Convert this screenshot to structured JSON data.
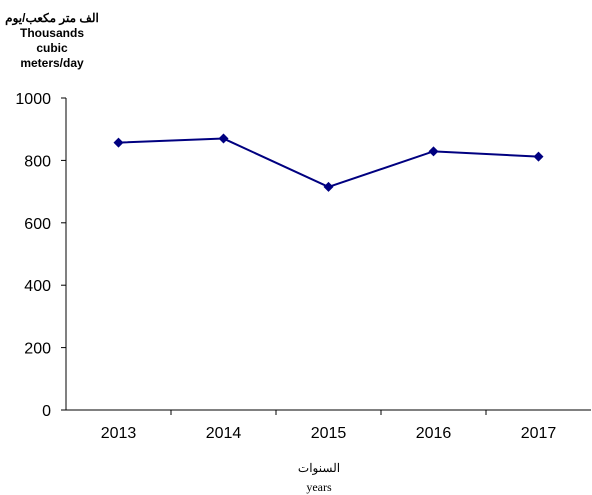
{
  "chart_data": {
    "type": "line",
    "ylabel_lines": [
      "الف متر مكعب/يوم",
      "Thousands",
      "cubic",
      "meters/day"
    ],
    "xlabel_lines": [
      "السنوات",
      "years"
    ],
    "categories": [
      "2013",
      "2014",
      "2015",
      "2016",
      "2017"
    ],
    "series": [
      {
        "values": [
          857,
          870,
          715,
          829,
          812
        ]
      }
    ],
    "ylim": [
      0,
      1000
    ],
    "yticks": [
      0,
      200,
      400,
      600,
      800,
      1000
    ],
    "grid": false,
    "legend": "none",
    "line_color": "#000080",
    "marker": "diamond"
  }
}
